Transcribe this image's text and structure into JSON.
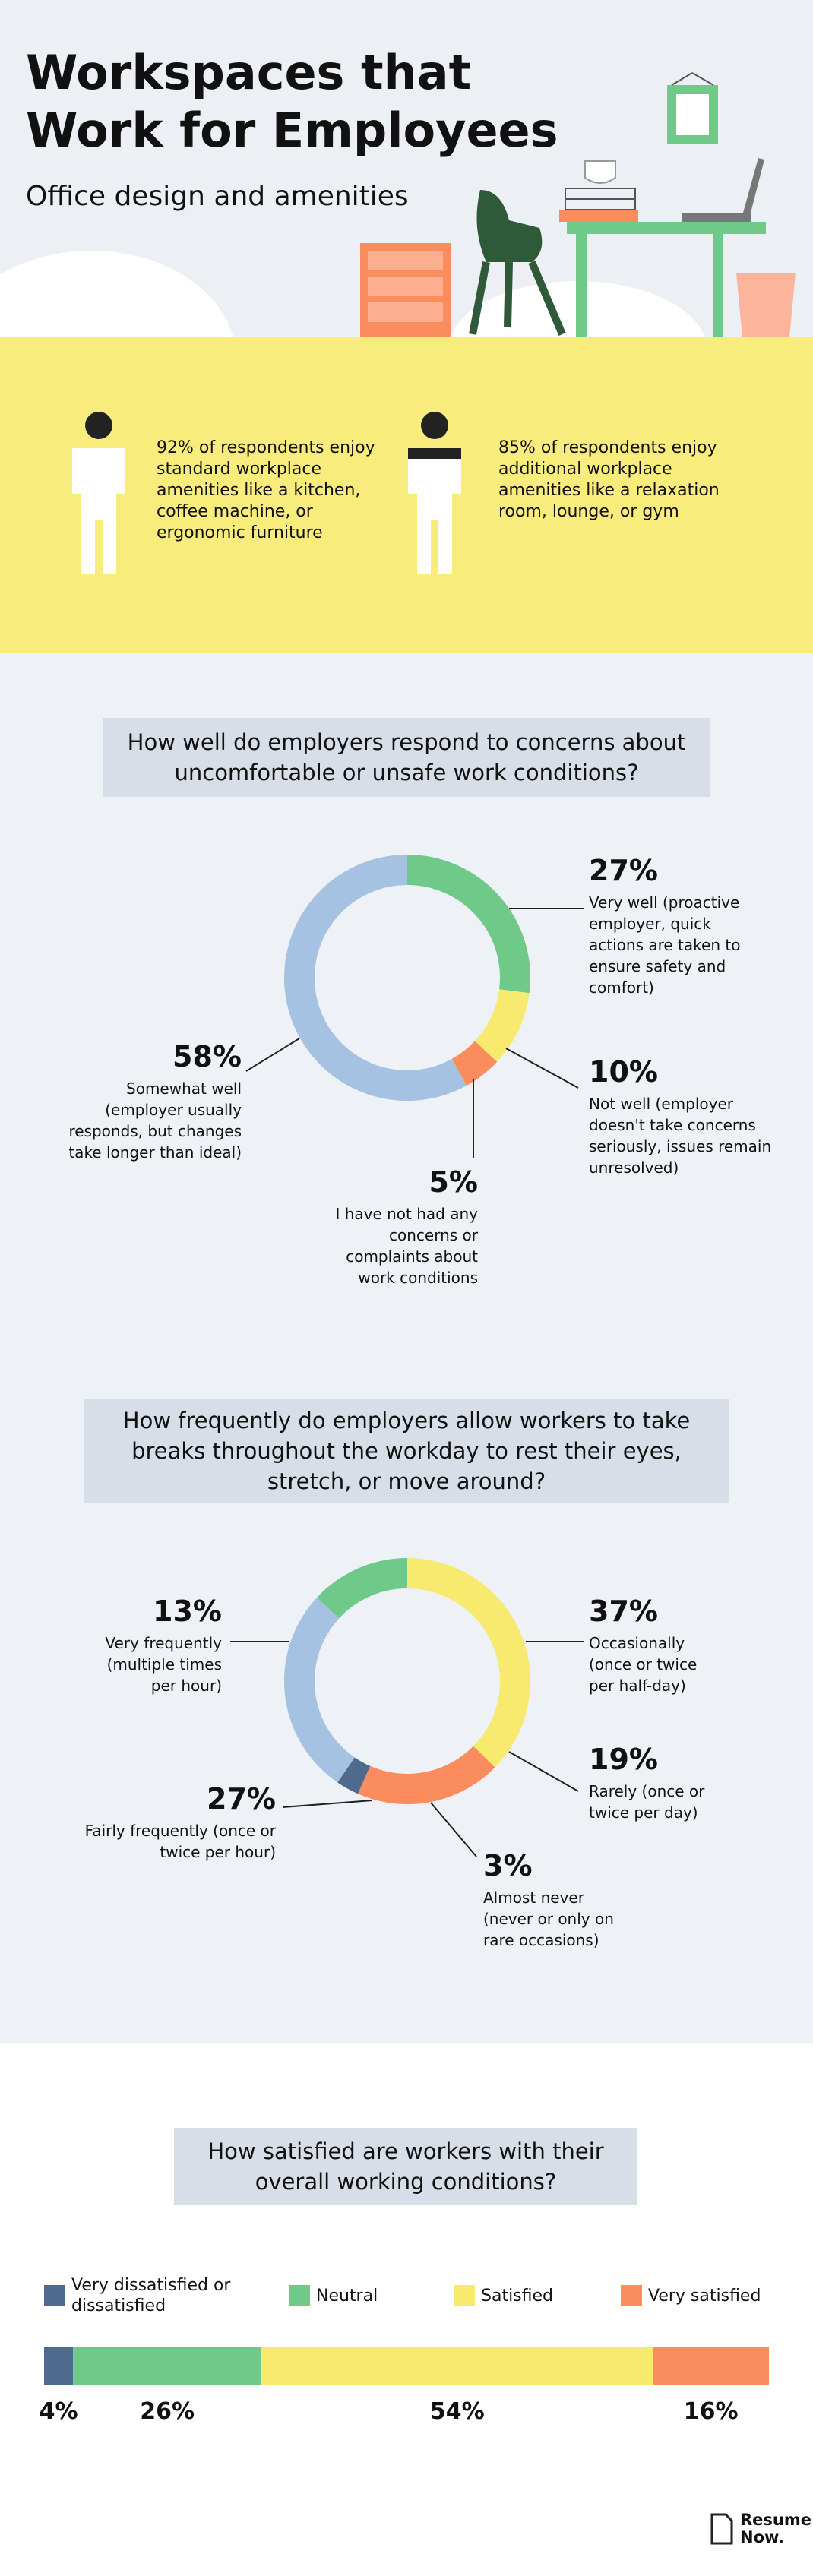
{
  "header": {
    "title": "Workspaces that Work for Employees",
    "subtitle": "Office design and amenities"
  },
  "stats": [
    {
      "text": "92% of respondents enjoy standard workplace amenities like a kitchen, coffee machine, or ergonomic furniture"
    },
    {
      "text": "85% of respondents enjoy additional workplace amenities like a relaxation room, lounge, or gym"
    }
  ],
  "chart_data": [
    {
      "type": "donut",
      "title": "How well do employers respond to concerns about uncomfortable or unsafe work conditions?",
      "categories": [
        "Very well (proactive employer, quick actions are taken to ensure safety and comfort)",
        "Not well (employer doesn't take concerns seriously, issues remain unresolved)",
        "I have not had any concerns or complaints about work conditions",
        "Somewhat well (employer usually responds, but changes take longer than ideal)"
      ],
      "values": [
        27,
        10,
        5,
        58
      ],
      "value_labels": [
        "27%",
        "10%",
        "5%",
        "58%"
      ],
      "colors": [
        "#6fca8a",
        "#f7ea6e",
        "#fb8c5d",
        "#a5c2e2"
      ]
    },
    {
      "type": "donut",
      "title": "How frequently do employers allow workers to take breaks throughout the workday to rest their eyes, stretch, or move around?",
      "categories": [
        "Occasionally (once or twice per half-day)",
        "Rarely (once or twice per day)",
        "Almost never (never or only on rare occasions)",
        "Fairly frequently (once or twice per hour)",
        "Very frequently (multiple times per hour)"
      ],
      "values": [
        37,
        19,
        3,
        27,
        13
      ],
      "value_labels": [
        "37%",
        "19%",
        "3%",
        "27%",
        "13%"
      ],
      "colors": [
        "#f7ea6e",
        "#fb8c5d",
        "#4e6a8c",
        "#a5c2e2",
        "#6fca8a"
      ]
    },
    {
      "type": "stacked_bar",
      "title": "How satisfied are workers with their overall working conditions?",
      "categories": [
        "Very dissatisfied or dissatisfied",
        "Neutral",
        "Satisfied",
        "Very satisfied"
      ],
      "values": [
        4,
        26,
        54,
        16
      ],
      "value_labels": [
        "4%",
        "26%",
        "54%",
        "16%"
      ],
      "colors": [
        "#4e6a8c",
        "#6fca8a",
        "#f7ea6e",
        "#fb8c5d"
      ]
    }
  ],
  "footer": {
    "logo": "Resume Now."
  }
}
